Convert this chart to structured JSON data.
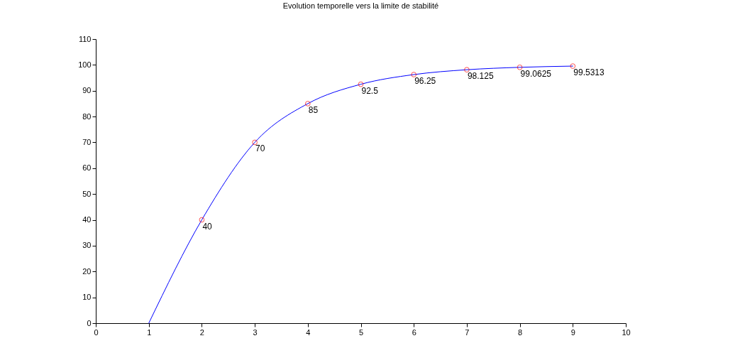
{
  "chart_data": {
    "type": "line",
    "title": "Evolution temporelle vers la limite de stabilité",
    "xlim": [
      0,
      10
    ],
    "xticks": [
      0,
      1,
      2,
      3,
      4,
      5,
      6,
      7,
      8,
      9,
      10
    ],
    "ylim": [
      0,
      110
    ],
    "yticks": [
      0,
      10,
      20,
      30,
      40,
      50,
      60,
      70,
      80,
      90,
      100,
      110
    ],
    "grid": false,
    "series": [
      {
        "type": "line",
        "color": "#0000ff",
        "marker": "none",
        "x": [
          1,
          2,
          3,
          4,
          5,
          6,
          7,
          8,
          9
        ],
        "values": [
          0,
          40,
          70,
          85,
          92.5,
          96.25,
          98.125,
          99.0625,
          99.5313
        ]
      },
      {
        "type": "scatter",
        "color": "#ff0000",
        "marker": "circle",
        "x": [
          2,
          3,
          4,
          5,
          6,
          7,
          8,
          9
        ],
        "values": [
          40,
          70,
          85,
          92.5,
          96.25,
          98.125,
          99.0625,
          99.5313
        ],
        "value_labels": [
          "40",
          "70",
          "85",
          "92.5",
          "96.25",
          "98.125",
          "99.0625",
          "99.5313"
        ]
      }
    ]
  }
}
